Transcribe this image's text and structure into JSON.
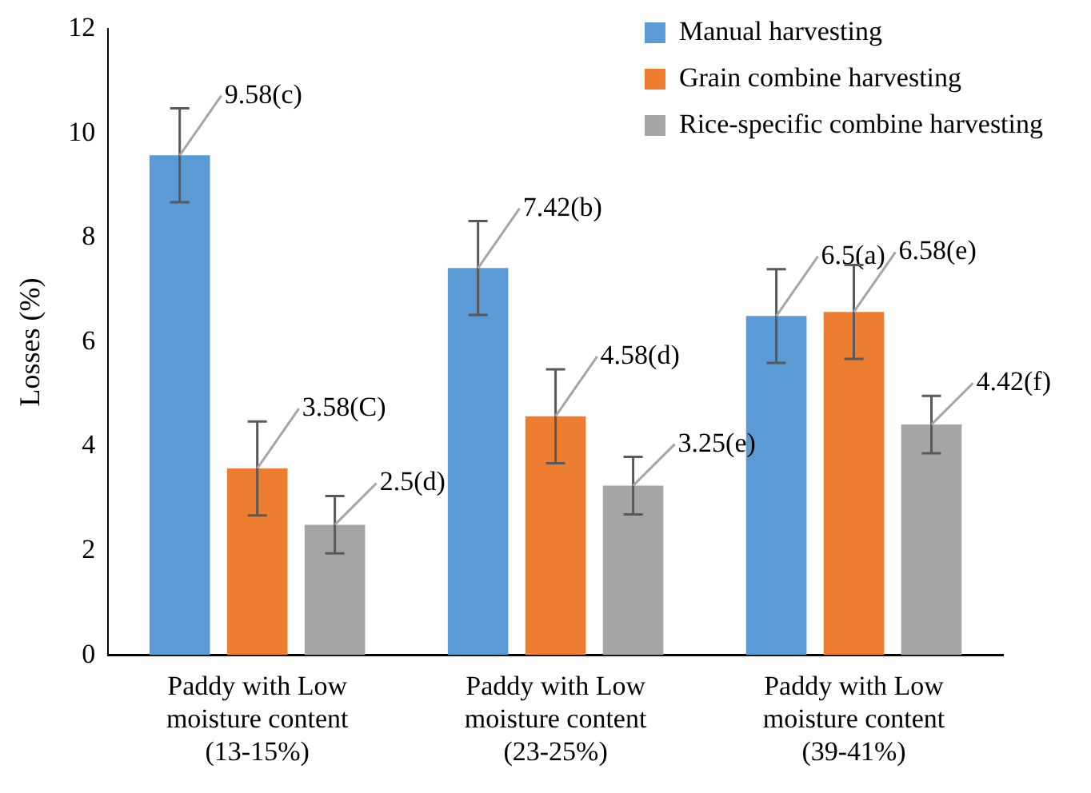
{
  "chart_data": {
    "type": "bar",
    "ylabel": "Losses (%)",
    "categories": [
      "Paddy with Low moisture content (13-15%)",
      "Paddy with Low moisture content (23-25%)",
      "Paddy with Low moisture content (39-41%)"
    ],
    "series": [
      {
        "name": "Manual harvesting",
        "color": "#5b9bd5",
        "values": [
          9.58,
          7.42,
          6.5
        ],
        "errors": [
          0.9,
          0.9,
          0.9
        ],
        "value_labels": [
          "9.58(c)",
          "7.42(b)",
          "6.5(a)"
        ]
      },
      {
        "name": "Grain combine harvesting",
        "color": "#ed7d31",
        "values": [
          3.58,
          4.58,
          6.58
        ],
        "errors": [
          0.9,
          0.9,
          0.9
        ],
        "value_labels": [
          "3.58(C)",
          "4.58(d)",
          "6.58(e)"
        ]
      },
      {
        "name": "Rice-specific combine harvesting",
        "color": "#a5a5a5",
        "values": [
          2.5,
          3.25,
          4.42
        ],
        "errors": [
          0.55,
          0.55,
          0.55
        ],
        "value_labels": [
          "2.5(d)",
          "3.25(e)",
          "4.42(f)"
        ]
      }
    ],
    "ylim": [
      0,
      12
    ],
    "yticks": [
      0,
      2,
      4,
      6,
      8,
      10,
      12
    ],
    "grid": false,
    "legend": "top right"
  }
}
